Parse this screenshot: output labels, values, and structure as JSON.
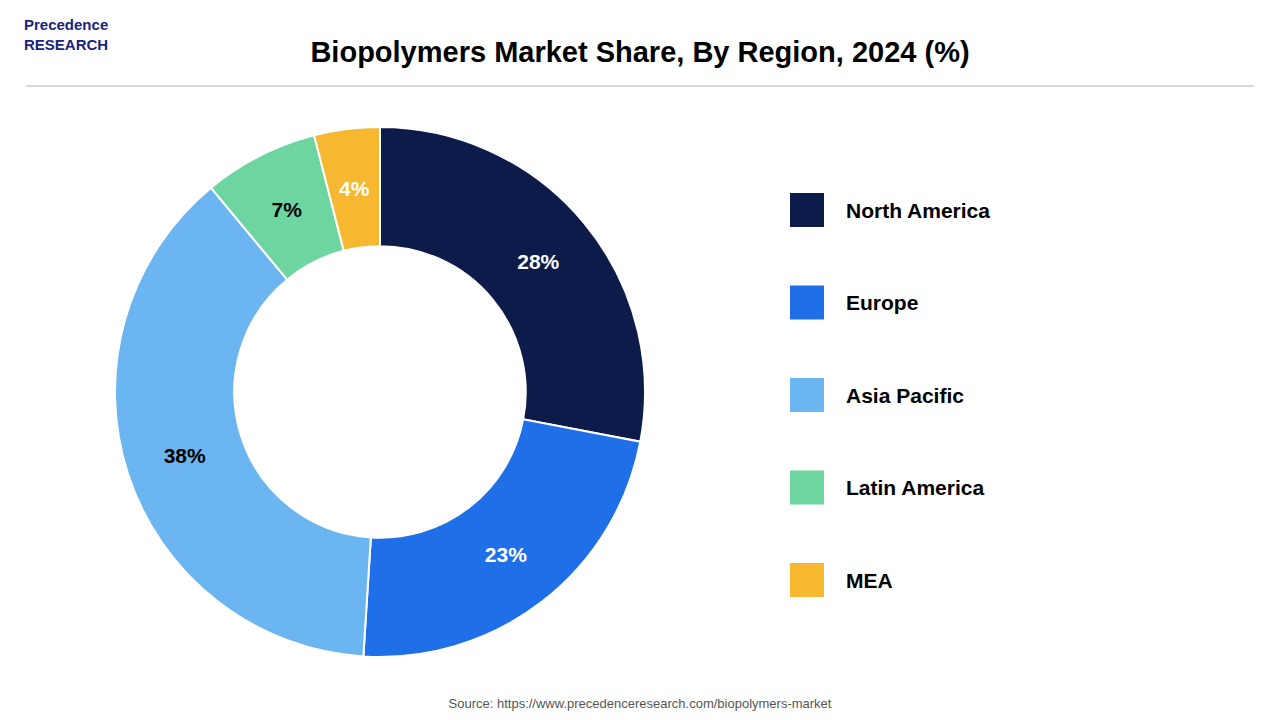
{
  "chart_data": {
    "type": "donut",
    "title": "Biopolymers Market Share, By Region, 2024 (%)",
    "categories": [
      "North America",
      "Europe",
      "Asia Pacific",
      "Latin America",
      "MEA"
    ],
    "values": [
      28,
      23,
      38,
      7,
      4
    ],
    "value_labels": [
      "28%",
      "23%",
      "38%",
      "7%",
      "4%"
    ],
    "colors": [
      "#0d1b4b",
      "#1f6fe8",
      "#6bb5f0",
      "#6dd6a0",
      "#f5b830"
    ],
    "data_labels": true,
    "legend": "right",
    "annotations": [
      "Source: https://www.precedenceresearch.com/biopolymers-market",
      "Precedence",
      "RESEARCH"
    ]
  }
}
